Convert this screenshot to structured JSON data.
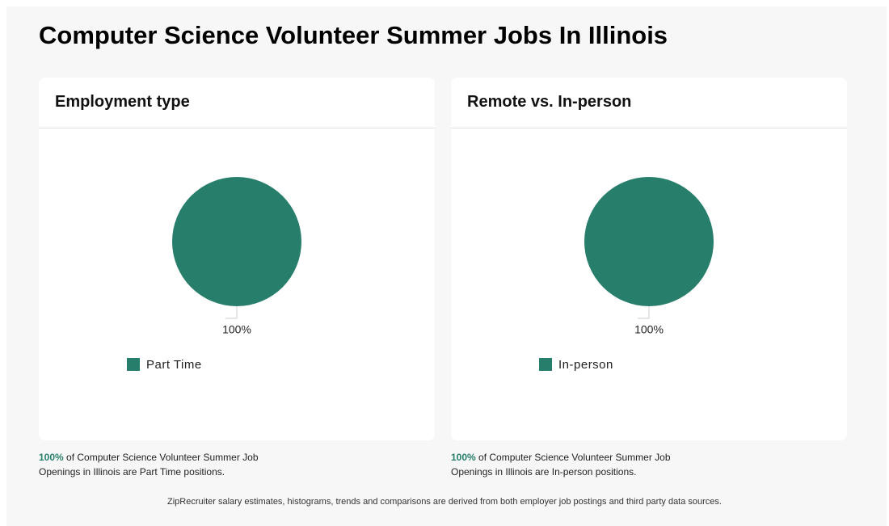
{
  "title": "Computer Science Volunteer Summer Jobs In Illinois",
  "chart_data": [
    {
      "type": "pie",
      "title": "Employment type",
      "categories": [
        "Part Time"
      ],
      "values": [
        100
      ],
      "value_labels": [
        "100%"
      ],
      "colors": [
        "#277f6b"
      ]
    },
    {
      "type": "pie",
      "title": "Remote vs. In-person",
      "categories": [
        "In-person"
      ],
      "values": [
        100
      ],
      "value_labels": [
        "100%"
      ],
      "colors": [
        "#277f6b"
      ]
    }
  ],
  "captions": [
    {
      "highlight": "100%",
      "text": "of Computer Science Volunteer Summer Job Openings in Illinois are Part Time positions."
    },
    {
      "highlight": "100%",
      "text": "of Computer Science Volunteer Summer Job Openings in Illinois are In-person positions."
    }
  ],
  "footer": "ZipRecruiter salary estimates, histograms, trends and comparisons are derived from both employer job postings and third party data sources."
}
